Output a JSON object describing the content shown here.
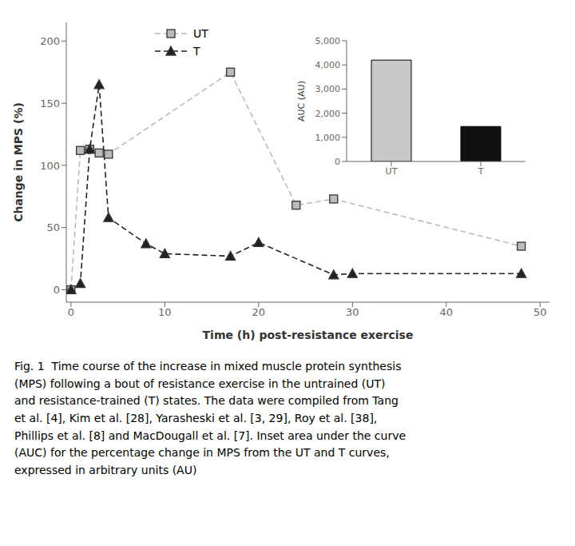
{
  "chart_data": [
    {
      "type": "line",
      "xlabel": "Time (h) post-resistance exercise",
      "ylabel": "Change in MPS (%)",
      "xlim": [
        -0.5,
        51
      ],
      "xticks": [
        0,
        10,
        20,
        30,
        40,
        50
      ],
      "ylim": [
        -10,
        215
      ],
      "yticks": [
        0,
        50,
        100,
        150,
        200
      ],
      "grid": false,
      "legend": "upper left",
      "line_style": "dashed",
      "series": [
        {
          "name": "UT",
          "color": "#bbbbbb",
          "marker": "square",
          "x": [
            0,
            1,
            2,
            3,
            4,
            17,
            24,
            28,
            48
          ],
          "values": [
            0,
            112,
            113,
            110,
            109,
            175,
            68,
            73,
            35
          ]
        },
        {
          "name": "T",
          "color": "#222222",
          "marker": "triangle",
          "x": [
            0,
            1,
            2,
            3,
            4,
            8,
            10,
            17,
            20,
            28,
            30,
            48
          ],
          "values": [
            0,
            5,
            113,
            165,
            58,
            37,
            29,
            27,
            38,
            12,
            13,
            13
          ]
        }
      ],
      "annotations": [
        "Fig. 1  Time course of the increase in mixed muscle protein synthesis",
        "(MPS) following a bout of resistance exercise in the untrained (UT)",
        "and resistance-trained (T) states. The data were compiled from Tang",
        "et al. [4], Kim et al. [28], Yarasheski et al. [3, 29], Roy et al. [38],",
        "Phillips et al. [8] and MacDougall et al. [7]. Inset area under the curve",
        "(AUC) for the percentage change in MPS from the UT and T curves,",
        "expressed in arbitrary units (AU)"
      ]
    },
    {
      "type": "bar",
      "categories": [
        "UT",
        "T"
      ],
      "values": [
        4200,
        1450
      ],
      "colors": [
        "#c8c8c8",
        "#111111"
      ],
      "ylabel": "AUC (AU)",
      "ylim": [
        0,
        5000
      ],
      "yticks": [
        0,
        {
          "value": 1000,
          "label": "1,000"
        },
        {
          "value": 2000,
          "label": "2,000"
        },
        {
          "value": 3000,
          "label": "3,000"
        },
        {
          "value": 4000,
          "label": "4,000"
        },
        {
          "value": 5000,
          "label": "5,000"
        }
      ]
    }
  ]
}
